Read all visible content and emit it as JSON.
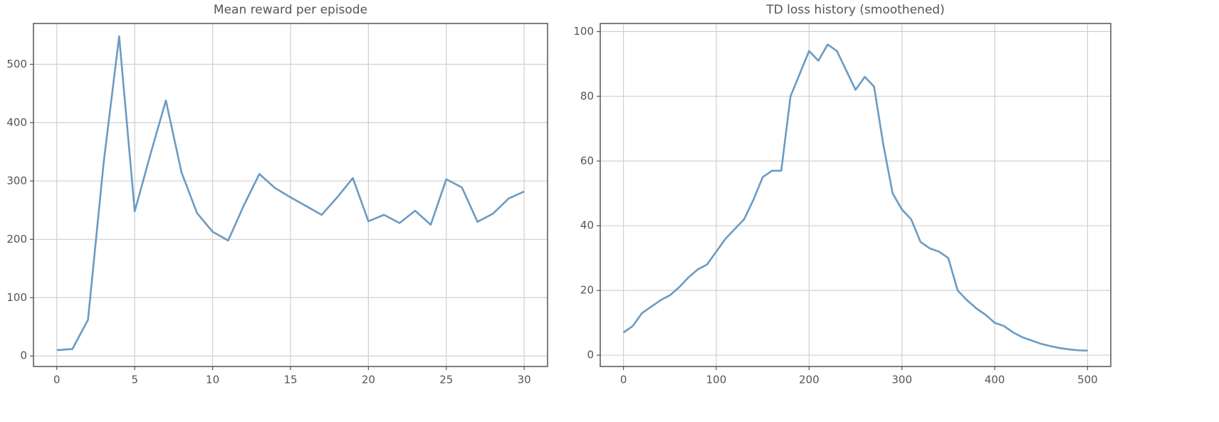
{
  "chart_data": [
    {
      "type": "line",
      "title": "Mean reward per episode",
      "x": [
        0,
        1,
        2,
        3,
        4,
        5,
        6,
        7,
        8,
        9,
        10,
        11,
        12,
        13,
        14,
        15,
        16,
        17,
        18,
        19,
        20,
        21,
        22,
        23,
        24,
        25,
        26,
        27,
        28,
        29,
        30
      ],
      "series": [
        {
          "color": "#6a9bc3",
          "values": [
            10,
            12,
            62,
            330,
            548,
            248,
            345,
            438,
            315,
            245,
            213,
            198,
            258,
            312,
            288,
            272,
            257,
            242,
            272,
            305,
            231,
            242,
            228,
            249,
            225,
            303,
            289,
            230,
            244,
            270,
            282
          ]
        }
      ],
      "xlim": [
        -1.5,
        31.5
      ],
      "ylim": [
        -18,
        570
      ],
      "xticks": [
        0,
        5,
        10,
        15,
        20,
        25,
        30
      ],
      "yticks": [
        0,
        100,
        200,
        300,
        400,
        500
      ],
      "grid": true
    },
    {
      "type": "line",
      "title": "TD loss history (smoothened)",
      "x": [
        0,
        10,
        20,
        30,
        40,
        50,
        60,
        70,
        80,
        90,
        100,
        110,
        120,
        130,
        140,
        150,
        160,
        170,
        180,
        190,
        200,
        210,
        220,
        230,
        240,
        250,
        260,
        270,
        280,
        290,
        300,
        310,
        320,
        330,
        340,
        350,
        360,
        370,
        380,
        390,
        400,
        410,
        420,
        430,
        440,
        450,
        460,
        470,
        480,
        490,
        500
      ],
      "series": [
        {
          "color": "#6a9bc3",
          "values": [
            7,
            9,
            13,
            15,
            17,
            18.5,
            21,
            24,
            26.5,
            28,
            32,
            36,
            39,
            42,
            48,
            55,
            57,
            57,
            80,
            87,
            94,
            91,
            96,
            94,
            88,
            82,
            86,
            83,
            65,
            50,
            45,
            42,
            35,
            33,
            32,
            30,
            20,
            17,
            14.5,
            12.5,
            10,
            9,
            7,
            5.5,
            4.5,
            3.5,
            2.8,
            2.2,
            1.8,
            1.5,
            1.4
          ]
        }
      ],
      "xlim": [
        -25,
        525
      ],
      "ylim": [
        -3.5,
        102.5
      ],
      "xticks": [
        0,
        100,
        200,
        300,
        400,
        500
      ],
      "yticks": [
        0,
        20,
        40,
        60,
        80,
        100
      ],
      "grid": true
    }
  ]
}
